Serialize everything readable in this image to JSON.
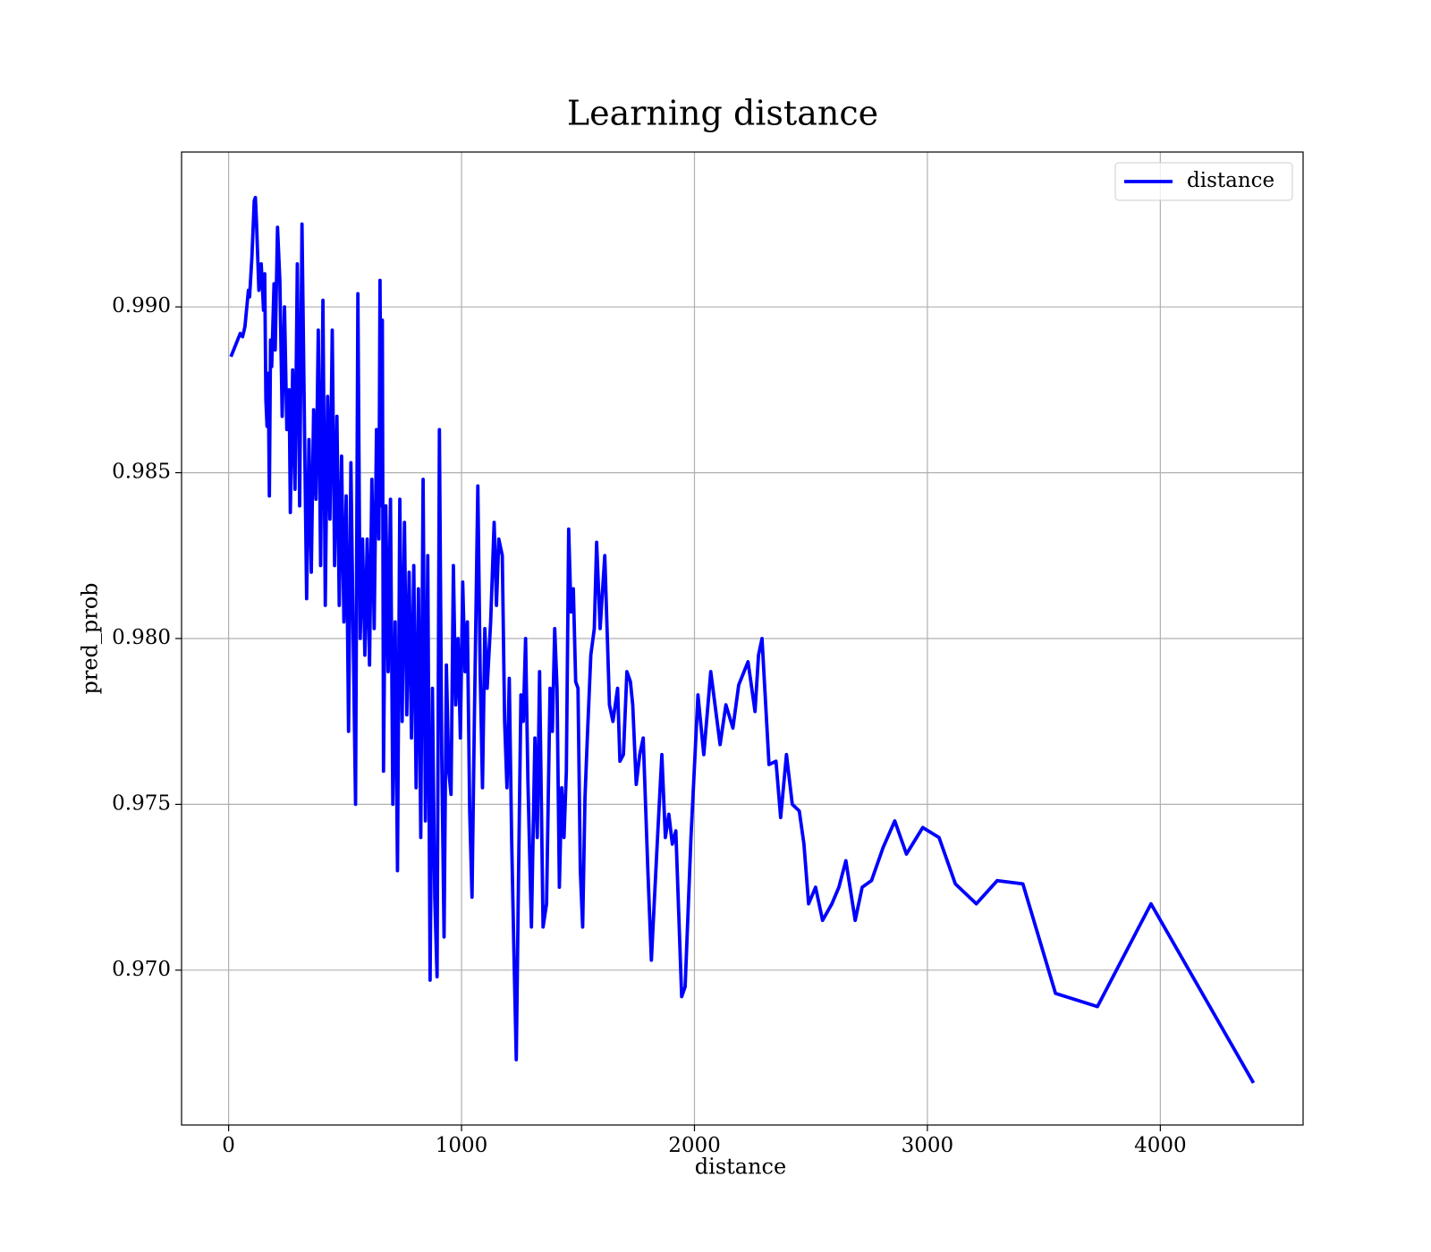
{
  "chart_data": {
    "type": "line",
    "title": "Learning distance",
    "xlabel": "distance",
    "ylabel": "pred_prob",
    "x": [
      10,
      50,
      60,
      70,
      85,
      90,
      100,
      110,
      115,
      120,
      130,
      140,
      150,
      155,
      160,
      165,
      170,
      175,
      180,
      185,
      195,
      200,
      210,
      220,
      230,
      240,
      250,
      260,
      265,
      275,
      285,
      295,
      305,
      315,
      325,
      335,
      345,
      355,
      365,
      375,
      385,
      395,
      405,
      415,
      425,
      435,
      445,
      455,
      465,
      475,
      485,
      495,
      505,
      515,
      525,
      535,
      545,
      555,
      565,
      575,
      585,
      595,
      605,
      615,
      625,
      635,
      645,
      650,
      655,
      660,
      665,
      675,
      685,
      695,
      705,
      715,
      725,
      735,
      745,
      755,
      765,
      775,
      785,
      795,
      805,
      815,
      825,
      835,
      845,
      855,
      865,
      875,
      885,
      895,
      905,
      915,
      925,
      935,
      945,
      955,
      965,
      975,
      985,
      995,
      1005,
      1015,
      1025,
      1035,
      1045,
      1055,
      1070,
      1080,
      1090,
      1100,
      1110,
      1125,
      1140,
      1150,
      1160,
      1175,
      1185,
      1195,
      1205,
      1215,
      1225,
      1235,
      1245,
      1255,
      1265,
      1275,
      1285,
      1300,
      1315,
      1325,
      1335,
      1350,
      1365,
      1380,
      1390,
      1400,
      1410,
      1420,
      1430,
      1440,
      1450,
      1460,
      1470,
      1480,
      1490,
      1500,
      1510,
      1520,
      1530,
      1540,
      1555,
      1570,
      1580,
      1595,
      1615,
      1635,
      1650,
      1670,
      1680,
      1695,
      1710,
      1725,
      1735,
      1750,
      1765,
      1780,
      1800,
      1815,
      1840,
      1860,
      1875,
      1890,
      1905,
      1920,
      1945,
      1960,
      1985,
      2015,
      2040,
      2070,
      2110,
      2135,
      2165,
      2190,
      2230,
      2260,
      2275,
      2290,
      2320,
      2350,
      2370,
      2395,
      2420,
      2450,
      2470,
      2490,
      2520,
      2550,
      2590,
      2620,
      2650,
      2690,
      2720,
      2760,
      2810,
      2860,
      2910,
      2980,
      3050,
      3120,
      3210,
      3300,
      3410,
      3550,
      3730,
      3960,
      4400
    ],
    "series": [
      {
        "name": "distance",
        "color": "#0000ff",
        "values": [
          0.9885,
          0.9892,
          0.9891,
          0.9894,
          0.9905,
          0.9903,
          0.9915,
          0.9932,
          0.9933,
          0.9925,
          0.9905,
          0.9913,
          0.9899,
          0.991,
          0.9872,
          0.9864,
          0.988,
          0.9843,
          0.989,
          0.9882,
          0.9907,
          0.9887,
          0.9924,
          0.9908,
          0.9867,
          0.99,
          0.9863,
          0.9875,
          0.9838,
          0.9881,
          0.9845,
          0.9913,
          0.984,
          0.9925,
          0.9868,
          0.9812,
          0.986,
          0.982,
          0.9869,
          0.9842,
          0.9893,
          0.9822,
          0.9902,
          0.981,
          0.9873,
          0.9836,
          0.9893,
          0.9822,
          0.9867,
          0.981,
          0.9855,
          0.9805,
          0.9843,
          0.9772,
          0.9853,
          0.98,
          0.975,
          0.9904,
          0.98,
          0.983,
          0.9795,
          0.983,
          0.9792,
          0.9848,
          0.9803,
          0.9863,
          0.983,
          0.9908,
          0.984,
          0.9896,
          0.976,
          0.984,
          0.979,
          0.9842,
          0.975,
          0.9805,
          0.973,
          0.9842,
          0.9775,
          0.9835,
          0.9777,
          0.982,
          0.977,
          0.9822,
          0.9755,
          0.9815,
          0.974,
          0.9848,
          0.9745,
          0.9825,
          0.9697,
          0.9785,
          0.9722,
          0.9698,
          0.9863,
          0.9765,
          0.971,
          0.9792,
          0.976,
          0.9753,
          0.9822,
          0.978,
          0.98,
          0.977,
          0.9817,
          0.979,
          0.9805,
          0.9748,
          0.9722,
          0.9775,
          0.9846,
          0.979,
          0.9755,
          0.9803,
          0.9785,
          0.9805,
          0.9835,
          0.981,
          0.983,
          0.9825,
          0.9775,
          0.9755,
          0.9788,
          0.974,
          0.9705,
          0.9673,
          0.973,
          0.9783,
          0.9775,
          0.98,
          0.9757,
          0.9713,
          0.977,
          0.974,
          0.979,
          0.9713,
          0.972,
          0.9785,
          0.9772,
          0.9803,
          0.9785,
          0.9725,
          0.9755,
          0.974,
          0.976,
          0.9833,
          0.9808,
          0.9815,
          0.9787,
          0.9785,
          0.973,
          0.9713,
          0.9752,
          0.977,
          0.9795,
          0.9803,
          0.9829,
          0.9803,
          0.9825,
          0.978,
          0.9775,
          0.9785,
          0.9763,
          0.9765,
          0.979,
          0.9787,
          0.978,
          0.9756,
          0.9765,
          0.977,
          0.973,
          0.9703,
          0.9738,
          0.9765,
          0.974,
          0.9747,
          0.9738,
          0.9742,
          0.9692,
          0.9695,
          0.974,
          0.9783,
          0.9765,
          0.979,
          0.9768,
          0.978,
          0.9773,
          0.9786,
          0.9793,
          0.9778,
          0.9795,
          0.98,
          0.9762,
          0.9763,
          0.9746,
          0.9765,
          0.975,
          0.9748,
          0.9738,
          0.972,
          0.9725,
          0.9715,
          0.972,
          0.9725,
          0.9733,
          0.9715,
          0.9725,
          0.9727,
          0.9737,
          0.9745,
          0.9735,
          0.9743,
          0.974,
          0.9726,
          0.972,
          0.9727,
          0.9726,
          0.9693,
          0.9689,
          0.972,
          0.9666
        ]
      }
    ],
    "xlim": [
      -202,
      4613
    ],
    "xticks": [
      0,
      1000,
      2000,
      3000,
      4000
    ],
    "ylim": [
      0.96533,
      0.99467
    ],
    "yticks": [
      {
        "value": 0.97,
        "label": "0.970"
      },
      0.975,
      {
        "value": 0.98,
        "label": "0.980"
      },
      0.985,
      {
        "value": 0.99,
        "label": "0.990"
      }
    ],
    "grid": true,
    "legend": "upper right"
  }
}
